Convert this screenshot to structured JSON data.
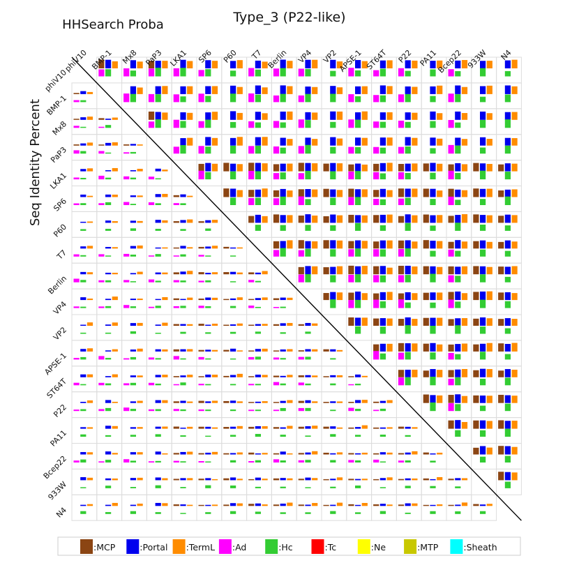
{
  "chart_data": {
    "type": "heatmap",
    "title": "Type_3 (P22-like)",
    "corner_label": "HHSearch Proba",
    "ylabel": "Seq Identity Percent",
    "phages": [
      "phiV10",
      "BMP-1",
      "Mx8",
      "PaP3",
      "LKA1",
      "SP6",
      "P60",
      "T7",
      "Berlin",
      "VP4",
      "VP2",
      "APSE-1",
      "ST64T",
      "P22",
      "PA11",
      "Bcep22",
      "933W",
      "N4"
    ],
    "components": [
      "MCP",
      "Portal",
      "TermL",
      "Ad",
      "Hc",
      "Tc",
      "Ne",
      "MTP",
      "Sheath"
    ],
    "colors": {
      "MCP": "#8B4513",
      "Portal": "#0000EE",
      "TermL": "#FF8C00",
      "Ad": "#FF00FF",
      "Hc": "#33CC33",
      "Tc": "#FF0000",
      "Ne": "#FFFF00",
      "MTP": "#C8C800",
      "Sheath": "#00FFFF"
    },
    "value_scale": [
      0,
      1
    ],
    "upper_triangle": "HHSearch probability per component (bar height, 0–1)",
    "lower_triangle": "sequence identity fraction per component (bar height, 0–1)",
    "upper_pattern": {
      "Ad_present_phages": [
        "phiV10",
        "BMP-1",
        "Mx8",
        "PaP3",
        "LKA1",
        "SP6",
        "T7",
        "Berlin",
        "VP4",
        "APSE-1",
        "ST64T",
        "P22",
        "Bcep22"
      ],
      "MCP_from_index": 4
    },
    "legend_position": "bottom",
    "grid": true
  }
}
